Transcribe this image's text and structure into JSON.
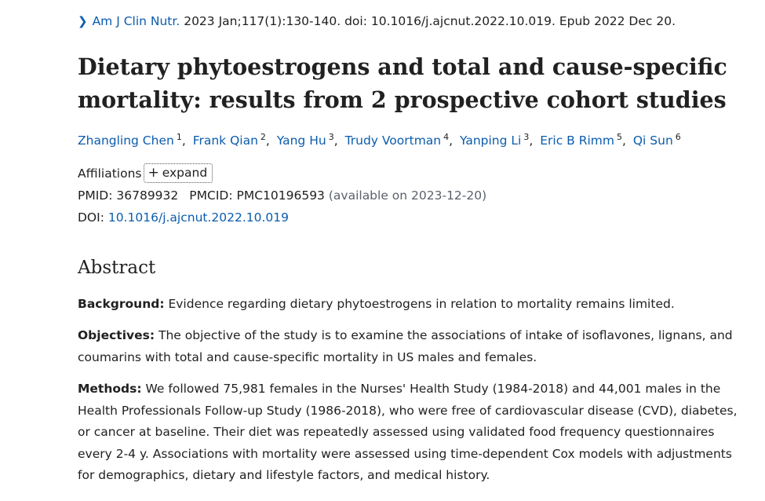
{
  "citation": {
    "journal": "Am J Clin Nutr.",
    "details": "2023 Jan;117(1):130-140. doi: 10.1016/j.ajcnut.2022.10.019. Epub 2022 Dec 20."
  },
  "title": "Dietary phytoestrogens and total and cause-specific mortality: results from 2 prospective cohort studies",
  "authors": [
    {
      "name": "Zhangling Chen",
      "aff": "1"
    },
    {
      "name": "Frank Qian",
      "aff": "2"
    },
    {
      "name": "Yang Hu",
      "aff": "3"
    },
    {
      "name": "Trudy Voortman",
      "aff": "4"
    },
    {
      "name": "Yanping Li",
      "aff": "3"
    },
    {
      "name": "Eric B Rimm",
      "aff": "5"
    },
    {
      "name": "Qi Sun",
      "aff": "6"
    }
  ],
  "affiliations": {
    "label": "Affiliations",
    "expand_label": "expand",
    "expand_icon": "plus-icon"
  },
  "ids": {
    "pmid": "PMID: 36789932",
    "pmcid": "PMCID: PMC10196593",
    "availability": "(available on 2023-12-20)"
  },
  "doi": {
    "label": "DOI:",
    "value": "10.1016/j.ajcnut.2022.10.019"
  },
  "abstract": {
    "heading": "Abstract",
    "sections": [
      {
        "label": "Background:",
        "text": "Evidence regarding dietary phytoestrogens in relation to mortality remains limited."
      },
      {
        "label": "Objectives:",
        "text": "The objective of the study is to examine the associations of intake of isoflavones, lignans, and coumarins with total and cause-specific mortality in US males and females."
      },
      {
        "label": "Methods:",
        "text": "We followed 75,981 females in the Nurses' Health Study (1984-2018) and 44,001 males in the Health Professionals Follow-up Study (1986-2018), who were free of cardiovascular disease (CVD), diabetes, or cancer at baseline. Their diet was repeatedly assessed using validated food frequency questionnaires every 2-4 y. Associations with mortality were assessed using time-dependent Cox models with adjustments for demographics, dietary and lifestyle factors, and medical history."
      }
    ]
  },
  "colors": {
    "link": "#0b5cad",
    "text": "#212121",
    "muted": "#5b616b"
  }
}
